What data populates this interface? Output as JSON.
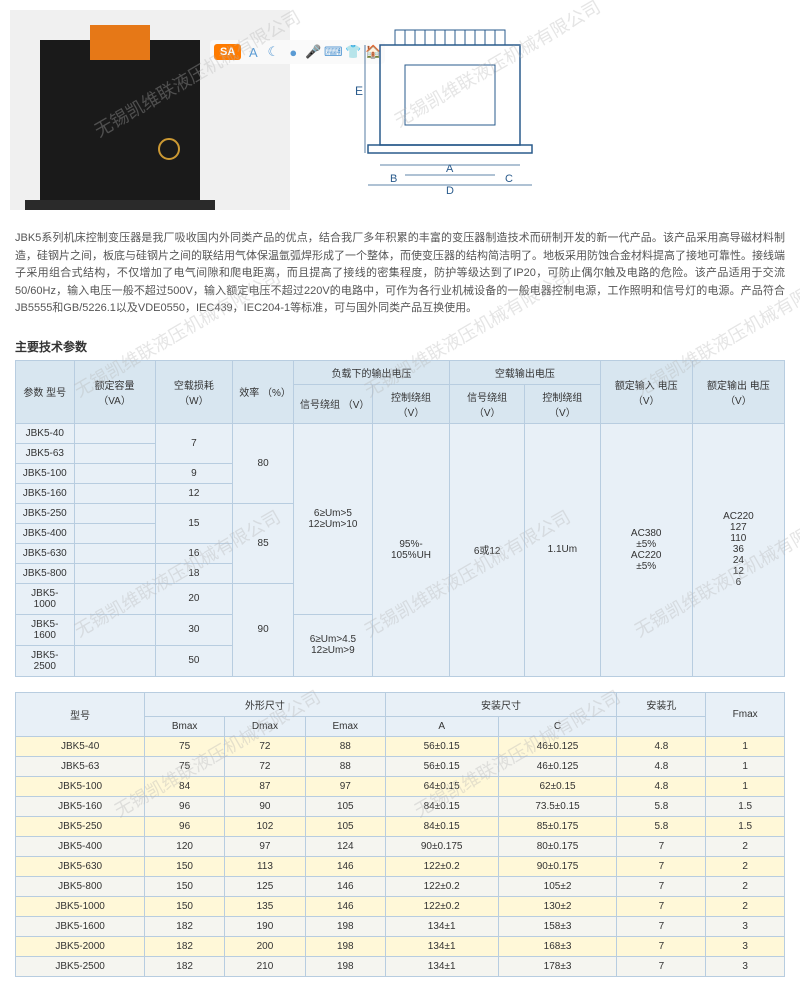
{
  "watermark_text": "无锡凯维联液压机械有限公司",
  "toolbar": {
    "sa_text": "SA",
    "icons": [
      "A",
      "☾",
      "●",
      "🎤",
      "⌨",
      "👕",
      "🏠"
    ]
  },
  "description": "JBK5系列机床控制变压器是我厂吸收国内外同类产品的优点，结合我厂多年积累的丰富的变压器制造技术而研制开发的新一代产品。该产品采用高导磁材料制造，硅钢片之间，板底与硅钢片之间的联结用气体保温氩弧焊形成了一个整体，而使变压器的结构简洁明了。地板采用防蚀合金材料提高了接地可靠性。接线端子采用组合式结构，不仅增加了电气间隙和爬电距离，而且提高了接线的密集程度，防护等级达到了IP20，可防止偶尔触及电路的危险。该产品适用于交流50/60Hz，输入电压一般不超过500V，输入额定电压不超过220V的电路中，可作为各行业机械设备的一般电器控制电源，工作照明和信号灯的电源。产品符合JB5555和GB/5226.1以及VDE0550，IEC439，IEC204-1等标准，可与国外同类产品互换使用。",
  "section_title": "主要技术参数",
  "table1": {
    "headers": {
      "param_model": "参数\n型号",
      "rated_capacity": "额定容量\n（VA）",
      "no_load_loss": "空载损耗\n（W）",
      "efficiency": "效率\n（%）",
      "load_voltage": "负载下的输出电压",
      "no_load_output": "空载输出电压",
      "rated_input": "额定输入\n电压（V）",
      "rated_output": "额定输出\n电压（V）",
      "signal_winding": "信号绕组\n（V）",
      "control_winding": "控制绕组\n（V）",
      "signal_winding2": "信号绕组\n（V）",
      "control_winding2": "控制绕组\n（V）"
    },
    "rows": [
      {
        "model": "JBK5-40",
        "loss": "7"
      },
      {
        "model": "JBK5-63",
        "loss": ""
      },
      {
        "model": "JBK5-100",
        "loss": "9"
      },
      {
        "model": "JBK5-160",
        "loss": "12"
      },
      {
        "model": "JBK5-250",
        "loss": "15"
      },
      {
        "model": "JBK5-400",
        "loss": ""
      },
      {
        "model": "JBK5-630",
        "loss": "16"
      },
      {
        "model": "JBK5-800",
        "loss": "18"
      },
      {
        "model": "JBK5-1000",
        "loss": "20"
      },
      {
        "model": "JBK5-1600",
        "loss": "30"
      },
      {
        "model": "JBK5-2500",
        "loss": "50"
      }
    ],
    "eff1": "80",
    "eff2": "85",
    "eff3": "90",
    "signal1": "6≥Um>5\n12≥Um>10",
    "signal2": "6≥Um>4.5\n12≥Um>9",
    "control": "95%-\n105%UH",
    "signal_w2": "6或12",
    "control_w2": "1.1Um",
    "input_v": "AC380\n±5%\nAC220\n±5%",
    "output_v": "AC220\n127\n110\n36\n24\n12\n6"
  },
  "table2": {
    "header_model": "型号",
    "header_outer": "外形尺寸",
    "header_install": "安装尺寸",
    "header_install_hole": "安装孔",
    "header_fmax": "Fmax",
    "sub_headers": [
      "Bmax",
      "Dmax",
      "Emax",
      "A",
      "C",
      ""
    ],
    "rows": [
      {
        "model": "JBK5-40",
        "b": "75",
        "d": "72",
        "e": "88",
        "a": "56±0.15",
        "c": "46±0.125",
        "h": "4.8",
        "f": "1"
      },
      {
        "model": "JBK5-63",
        "b": "75",
        "d": "72",
        "e": "88",
        "a": "56±0.15",
        "c": "46±0.125",
        "h": "4.8",
        "f": "1"
      },
      {
        "model": "JBK5-100",
        "b": "84",
        "d": "87",
        "e": "97",
        "a": "64±0.15",
        "c": "62±0.15",
        "h": "4.8",
        "f": "1"
      },
      {
        "model": "JBK5-160",
        "b": "96",
        "d": "90",
        "e": "105",
        "a": "84±0.15",
        "c": "73.5±0.15",
        "h": "5.8",
        "f": "1.5"
      },
      {
        "model": "JBK5-250",
        "b": "96",
        "d": "102",
        "e": "105",
        "a": "84±0.15",
        "c": "85±0.175",
        "h": "5.8",
        "f": "1.5"
      },
      {
        "model": "JBK5-400",
        "b": "120",
        "d": "97",
        "e": "124",
        "a": "90±0.175",
        "c": "80±0.175",
        "h": "7",
        "f": "2"
      },
      {
        "model": "JBK5-630",
        "b": "150",
        "d": "113",
        "e": "146",
        "a": "122±0.2",
        "c": "90±0.175",
        "h": "7",
        "f": "2"
      },
      {
        "model": "JBK5-800",
        "b": "150",
        "d": "125",
        "e": "146",
        "a": "122±0.2",
        "c": "105±2",
        "h": "7",
        "f": "2"
      },
      {
        "model": "JBK5-1000",
        "b": "150",
        "d": "135",
        "e": "146",
        "a": "122±0.2",
        "c": "130±2",
        "h": "7",
        "f": "2"
      },
      {
        "model": "JBK5-1600",
        "b": "182",
        "d": "190",
        "e": "198",
        "a": "134±1",
        "c": "158±3",
        "h": "7",
        "f": "3"
      },
      {
        "model": "JBK5-2000",
        "b": "182",
        "d": "200",
        "e": "198",
        "a": "134±1",
        "c": "168±3",
        "h": "7",
        "f": "3"
      },
      {
        "model": "JBK5-2500",
        "b": "182",
        "d": "210",
        "e": "198",
        "a": "134±1",
        "c": "178±3",
        "h": "7",
        "f": "3"
      }
    ]
  },
  "diagram_labels": {
    "E": "E",
    "A": "A",
    "B": "B",
    "C": "C",
    "D": "D"
  }
}
